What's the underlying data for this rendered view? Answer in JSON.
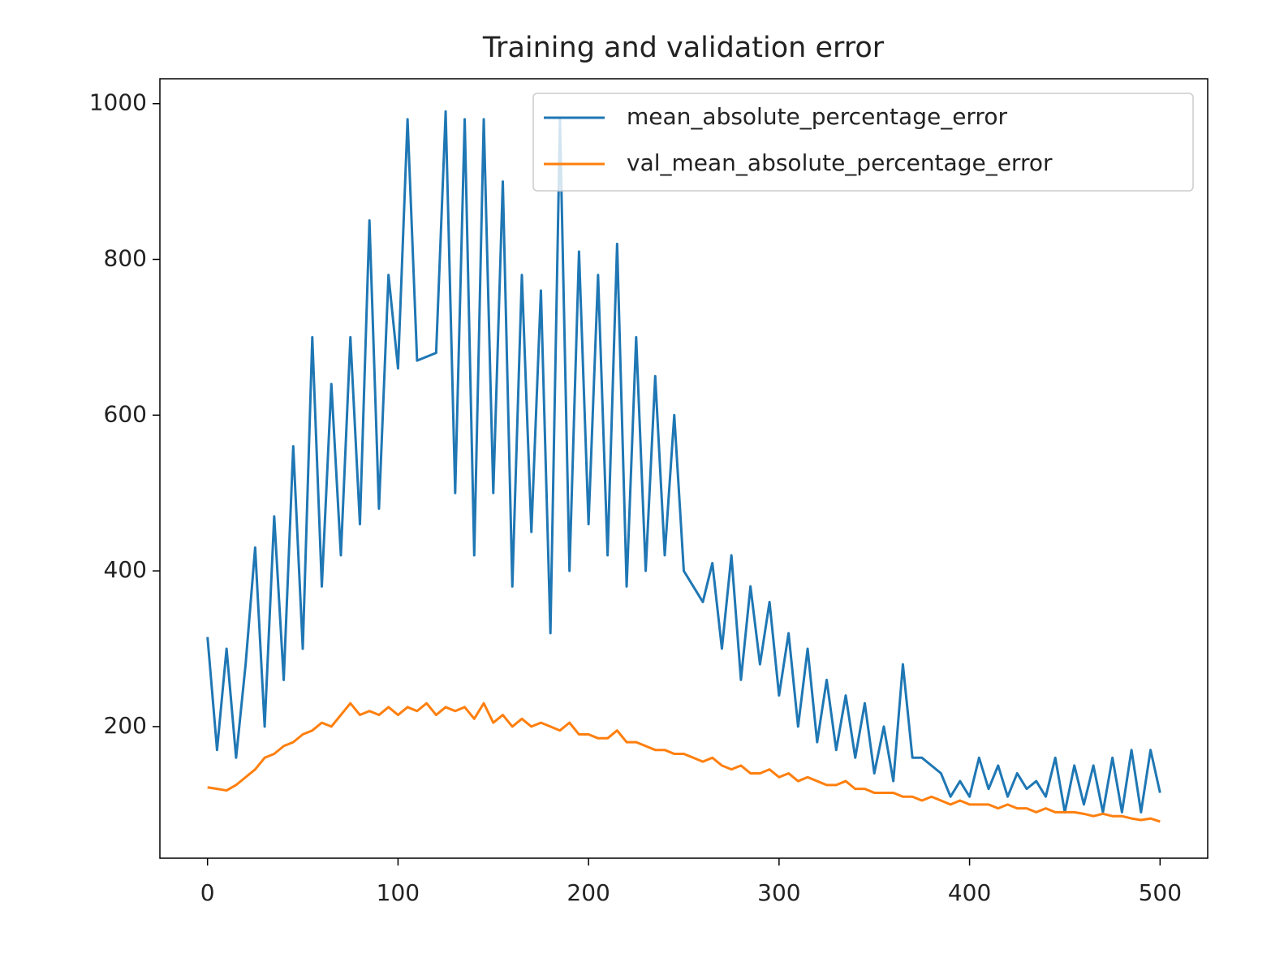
{
  "chart_data": {
    "type": "line",
    "title": "Training and validation error",
    "x": [
      0,
      5,
      10,
      15,
      20,
      25,
      30,
      35,
      40,
      45,
      50,
      55,
      60,
      65,
      70,
      75,
      80,
      85,
      90,
      95,
      100,
      105,
      110,
      115,
      120,
      125,
      130,
      135,
      140,
      145,
      150,
      155,
      160,
      165,
      170,
      175,
      180,
      185,
      190,
      195,
      200,
      205,
      210,
      215,
      220,
      225,
      230,
      235,
      240,
      245,
      250,
      255,
      260,
      265,
      270,
      275,
      280,
      285,
      290,
      295,
      300,
      305,
      310,
      315,
      320,
      325,
      330,
      335,
      340,
      345,
      350,
      355,
      360,
      365,
      370,
      375,
      380,
      385,
      390,
      395,
      400,
      405,
      410,
      415,
      420,
      425,
      430,
      435,
      440,
      445,
      450,
      455,
      460,
      465,
      470,
      475,
      480,
      485,
      490,
      495,
      500
    ],
    "series": [
      {
        "name": "mean_absolute_percentage_error",
        "color": "#1f77b4",
        "values": [
          315,
          170,
          300,
          160,
          280,
          430,
          200,
          470,
          260,
          560,
          300,
          700,
          380,
          640,
          420,
          700,
          460,
          850,
          480,
          780,
          660,
          980,
          670,
          675,
          680,
          990,
          500,
          980,
          420,
          980,
          500,
          900,
          380,
          780,
          450,
          760,
          320,
          980,
          400,
          810,
          460,
          780,
          420,
          820,
          380,
          700,
          400,
          650,
          420,
          600,
          400,
          380,
          360,
          410,
          300,
          420,
          260,
          380,
          280,
          360,
          240,
          320,
          200,
          300,
          180,
          260,
          170,
          240,
          160,
          230,
          140,
          200,
          130,
          280,
          160,
          160,
          150,
          140,
          110,
          130,
          110,
          160,
          120,
          150,
          110,
          140,
          120,
          130,
          110,
          160,
          90,
          150,
          100,
          150,
          90,
          160,
          90,
          170,
          90,
          170,
          115
        ]
      },
      {
        "name": "val_mean_absolute_percentage_error",
        "color": "#ff7f0e",
        "values": [
          122,
          120,
          118,
          125,
          135,
          145,
          160,
          165,
          175,
          180,
          190,
          195,
          205,
          200,
          215,
          230,
          215,
          220,
          215,
          225,
          215,
          225,
          220,
          230,
          215,
          225,
          220,
          225,
          210,
          230,
          205,
          215,
          200,
          210,
          200,
          205,
          200,
          195,
          205,
          190,
          190,
          185,
          185,
          195,
          180,
          180,
          175,
          170,
          170,
          165,
          165,
          160,
          155,
          160,
          150,
          145,
          150,
          140,
          140,
          145,
          135,
          140,
          130,
          135,
          130,
          125,
          125,
          130,
          120,
          120,
          115,
          115,
          115,
          110,
          110,
          105,
          110,
          105,
          100,
          105,
          100,
          100,
          100,
          95,
          100,
          95,
          95,
          90,
          95,
          90,
          90,
          90,
          88,
          85,
          88,
          85,
          85,
          82,
          80,
          82,
          78
        ]
      }
    ],
    "xlim": [
      -25,
      525
    ],
    "ylim": [
      31,
      1032
    ],
    "xticks": [
      0,
      100,
      200,
      300,
      400,
      500
    ],
    "yticks": [
      200,
      400,
      600,
      800,
      1000
    ],
    "legend": "upper right"
  }
}
